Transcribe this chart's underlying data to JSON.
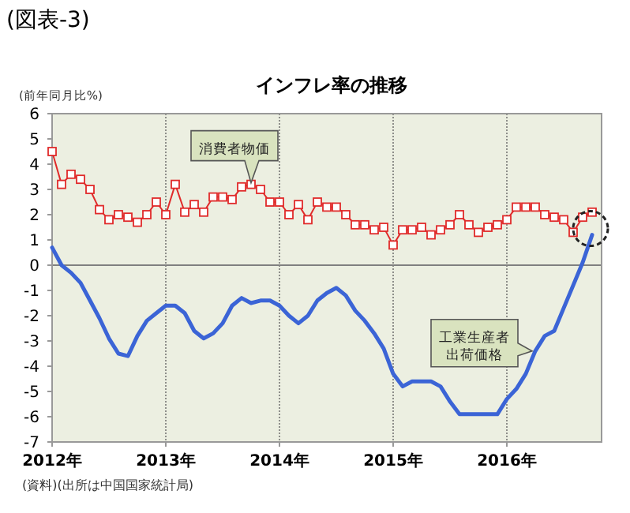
{
  "chart_data": {
    "type": "line",
    "title": "インフレ率の推移",
    "ylabel": "(前年同月比%)",
    "x": [
      "2012-01",
      "2012-02",
      "2012-03",
      "2012-04",
      "2012-05",
      "2012-06",
      "2012-07",
      "2012-08",
      "2012-09",
      "2012-10",
      "2012-11",
      "2012-12",
      "2013-01",
      "2013-02",
      "2013-03",
      "2013-04",
      "2013-05",
      "2013-06",
      "2013-07",
      "2013-08",
      "2013-09",
      "2013-10",
      "2013-11",
      "2013-12",
      "2014-01",
      "2014-02",
      "2014-03",
      "2014-04",
      "2014-05",
      "2014-06",
      "2014-07",
      "2014-08",
      "2014-09",
      "2014-10",
      "2014-11",
      "2014-12",
      "2015-01",
      "2015-02",
      "2015-03",
      "2015-04",
      "2015-05",
      "2015-06",
      "2015-07",
      "2015-08",
      "2015-09",
      "2015-10",
      "2015-11",
      "2015-12",
      "2016-01",
      "2016-02",
      "2016-03",
      "2016-04",
      "2016-05",
      "2016-06",
      "2016-07",
      "2016-08",
      "2016-09",
      "2016-10"
    ],
    "series": [
      {
        "color": "#e02a2a",
        "marker": "square",
        "values": [
          4.5,
          3.2,
          3.6,
          3.4,
          3.0,
          2.2,
          1.8,
          2.0,
          1.9,
          1.7,
          2.0,
          2.5,
          2.0,
          3.2,
          2.1,
          2.4,
          2.1,
          2.7,
          2.7,
          2.6,
          3.1,
          3.2,
          3.0,
          2.5,
          2.5,
          2.0,
          2.4,
          1.8,
          2.5,
          2.3,
          2.3,
          2.0,
          1.6,
          1.6,
          1.4,
          1.5,
          0.8,
          1.4,
          1.4,
          1.5,
          1.2,
          1.4,
          1.6,
          2.0,
          1.6,
          1.3,
          1.5,
          1.6,
          1.8,
          2.3,
          2.3,
          2.3,
          2.0,
          1.9,
          1.8,
          1.3,
          1.9,
          2.1
        ]
      },
      {
        "color": "#3b64d6",
        "marker": "none",
        "values": [
          0.7,
          0.0,
          -0.3,
          -0.7,
          -1.4,
          -2.1,
          -2.9,
          -3.5,
          -3.6,
          -2.8,
          -2.2,
          -1.9,
          -1.6,
          -1.6,
          -1.9,
          -2.6,
          -2.9,
          -2.7,
          -2.3,
          -1.6,
          -1.3,
          -1.5,
          -1.4,
          -1.4,
          -1.6,
          -2.0,
          -2.3,
          -2.0,
          -1.4,
          -1.1,
          -0.9,
          -1.2,
          -1.8,
          -2.2,
          -2.7,
          -3.3,
          -4.3,
          -4.8,
          -4.6,
          -4.6,
          -4.6,
          -4.8,
          -5.4,
          -5.9,
          -5.9,
          -5.9,
          -5.9,
          -5.9,
          -5.3,
          -4.9,
          -4.3,
          -3.4,
          -2.8,
          -2.6,
          -1.7,
          -0.8,
          0.1,
          1.2
        ]
      }
    ],
    "xlim": [
      "2012-01",
      "2016-11"
    ],
    "xticks": [
      {
        "value": "2012-01",
        "label": "2012年"
      },
      {
        "value": "2013-01",
        "label": "2013年"
      },
      {
        "value": "2014-01",
        "label": "2014年"
      },
      {
        "value": "2015-01",
        "label": "2015年"
      },
      {
        "value": "2016-01",
        "label": "2016年"
      }
    ],
    "ylim": [
      -7,
      6
    ],
    "yticks": [
      -7,
      -6,
      -5,
      -4,
      -3,
      -2,
      -1,
      0,
      1,
      2,
      3,
      4,
      5,
      6
    ],
    "grid": "x",
    "ref_lines": [
      {
        "axis": "y",
        "value": 0,
        "color": "#808080"
      }
    ],
    "annotations": [
      "(図表-3)",
      {
        "text": "消費者物価",
        "x": "2013-10",
        "y": 3.2
      },
      {
        "text": "工業生産者出荷価格",
        "x": "2016-04",
        "y": -3.4
      },
      "(資料)(出所は中国国家統計局)"
    ]
  }
}
